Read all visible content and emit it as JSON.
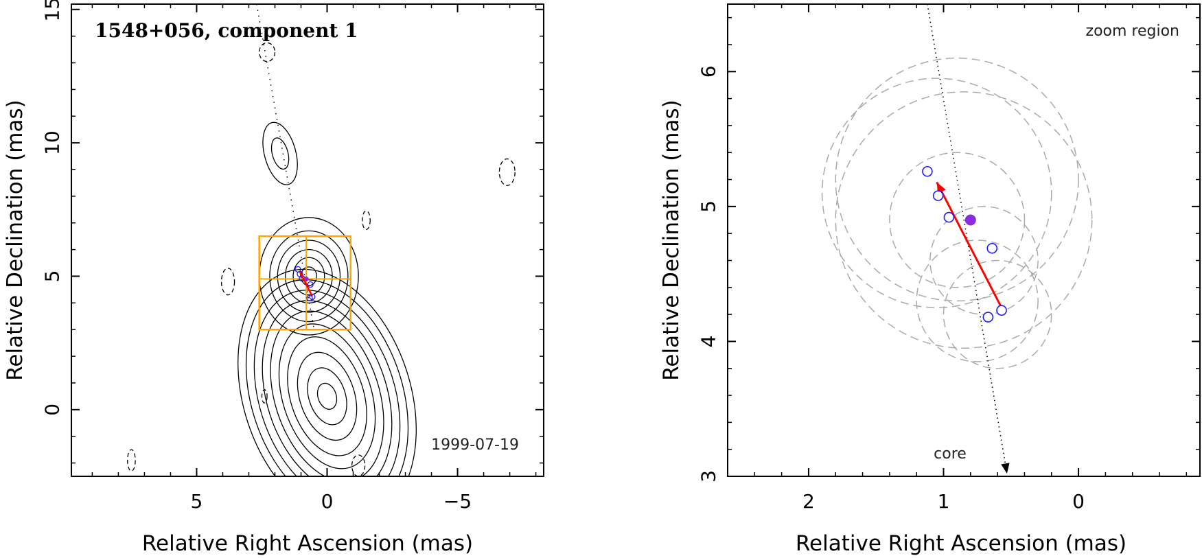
{
  "chart_data": [
    {
      "type": "contour",
      "title": "1548+056, component 1",
      "epoch_label": "1999-07-19",
      "xlabel": "Relative Right Ascension (mas)",
      "ylabel": "Relative Declination (mas)",
      "xlim": [
        9.8,
        -8.3
      ],
      "ylim": [
        -2.5,
        15.2
      ],
      "xticks": [
        5,
        0,
        -5
      ],
      "xtick_labels": [
        "5",
        "0",
        "−5"
      ],
      "yticks": [
        0,
        5,
        10,
        15
      ],
      "ytick_labels": [
        "0",
        "5",
        "10",
        "15"
      ],
      "contour_groups": [
        {
          "cx": 0.0,
          "cy": 0.5,
          "rx": [
            0.35,
            0.7,
            1.05,
            1.4,
            1.7,
            2.0,
            2.3,
            2.6,
            2.9,
            3.2
          ],
          "ry": [
            0.5,
            1.1,
            1.7,
            2.3,
            2.8,
            3.3,
            3.7,
            4.1,
            4.5,
            4.9
          ],
          "rot": -18
        },
        {
          "cx": 0.7,
          "cy": 5.0,
          "rx": [
            0.3,
            0.6,
            0.9,
            1.2,
            1.5,
            1.9
          ],
          "ry": [
            0.35,
            0.7,
            1.0,
            1.35,
            1.7,
            2.2
          ],
          "rot": 0
        },
        {
          "cx": 1.8,
          "cy": 9.6,
          "rx": [
            0.3,
            0.6
          ],
          "ry": [
            0.6,
            1.2
          ],
          "rot": -15
        }
      ],
      "negative_contours": [
        {
          "cx": 3.8,
          "cy": 4.8,
          "rx": 0.25,
          "ry": 0.5
        },
        {
          "cx": 2.3,
          "cy": 13.4,
          "rx": 0.3,
          "ry": 0.35
        },
        {
          "cx": -6.9,
          "cy": 8.9,
          "rx": 0.3,
          "ry": 0.5
        },
        {
          "cx": -1.5,
          "cy": 7.1,
          "rx": 0.15,
          "ry": 0.35
        },
        {
          "cx": 7.5,
          "cy": -1.9,
          "rx": 0.15,
          "ry": 0.4
        },
        {
          "cx": 2.4,
          "cy": 0.5,
          "rx": 0.1,
          "ry": 0.25
        },
        {
          "cx": -1.2,
          "cy": -2.1,
          "rx": 0.25,
          "ry": 0.4
        }
      ],
      "zoom_box": {
        "x_range": [
          2.6,
          -0.9
        ],
        "y_range": [
          3.0,
          6.5
        ],
        "grid_x": 0.8,
        "grid_y": 4.9
      },
      "components": [
        {
          "x": 1.12,
          "y": 5.26
        },
        {
          "x": 1.04,
          "y": 5.08
        },
        {
          "x": 0.96,
          "y": 4.92
        },
        {
          "x": 0.64,
          "y": 4.69
        },
        {
          "x": 0.67,
          "y": 4.18
        },
        {
          "x": 0.57,
          "y": 4.23
        }
      ],
      "mean_position": {
        "x": 0.8,
        "y": 4.9
      },
      "motion_vector": {
        "from": [
          0.57,
          4.25
        ],
        "to": [
          1.05,
          5.18
        ]
      },
      "jet_axis": {
        "from": [
          2.7,
          15.2
        ],
        "to": [
          0.5,
          3.0
        ]
      }
    },
    {
      "type": "scatter",
      "region_label": "zoom region",
      "core_label": "core",
      "xlabel": "Relative Right Ascension (mas)",
      "ylabel": "Relative Declination (mas)",
      "xlim": [
        2.6,
        -0.9
      ],
      "ylim": [
        3.0,
        6.5
      ],
      "xticks": [
        2,
        1,
        0
      ],
      "xtick_labels": [
        "2",
        "1",
        "0"
      ],
      "yticks": [
        3,
        4,
        5,
        6
      ],
      "ytick_labels": [
        "3",
        "4",
        "5",
        "6"
      ],
      "components": [
        {
          "x": 1.12,
          "y": 5.26
        },
        {
          "x": 1.04,
          "y": 5.08
        },
        {
          "x": 0.96,
          "y": 4.92
        },
        {
          "x": 0.64,
          "y": 4.69
        },
        {
          "x": 0.67,
          "y": 4.18
        },
        {
          "x": 0.57,
          "y": 4.23
        }
      ],
      "component_sizes": [
        {
          "x": 1.05,
          "y": 5.1,
          "r": 0.85
        },
        {
          "x": 0.9,
          "y": 5.2,
          "r": 0.9
        },
        {
          "x": 0.85,
          "y": 4.9,
          "r": 0.95
        },
        {
          "x": 0.9,
          "y": 4.9,
          "r": 0.5
        },
        {
          "x": 0.7,
          "y": 4.6,
          "r": 0.4
        },
        {
          "x": 0.6,
          "y": 4.2,
          "r": 0.4
        },
        {
          "x": 0.75,
          "y": 4.3,
          "r": 0.45
        }
      ],
      "mean_position": {
        "x": 0.8,
        "y": 4.9
      },
      "motion_vector": {
        "from": [
          0.57,
          4.25
        ],
        "to": [
          1.05,
          5.18
        ]
      },
      "jet_axis": {
        "from": [
          1.12,
          6.5
        ],
        "to": [
          0.53,
          3.0
        ]
      }
    }
  ],
  "colors": {
    "contour": "#000000",
    "component": "#1a1aff",
    "mean": "#8a2be2",
    "vector": "#ff0000",
    "zoom_box": "#ffa500",
    "size_circle": "#aaaaaa"
  }
}
